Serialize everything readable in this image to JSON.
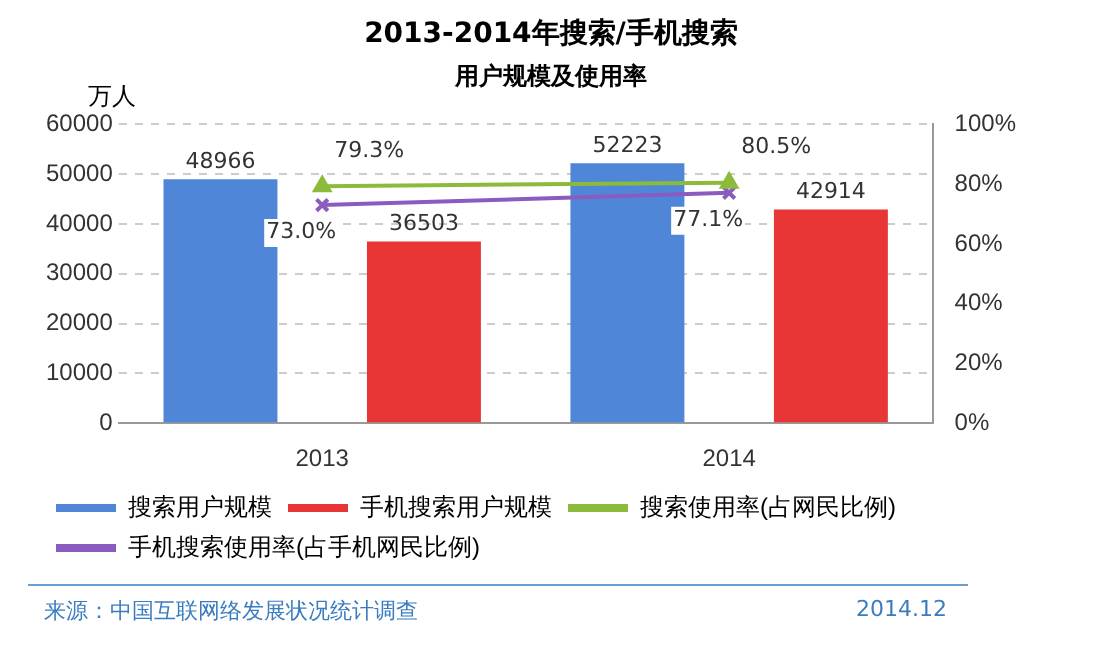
{
  "chart_data": {
    "type": "bar",
    "title": "2013-2014年搜索/手机搜索",
    "subtitle": "用户规模及使用率",
    "ylabel": "万人",
    "categories": [
      "2013",
      "2014"
    ],
    "series": [
      {
        "name": "搜索用户规模",
        "color": "#4f86d8",
        "values": [
          48966,
          52223
        ],
        "value_labels": [
          "48966",
          "52223"
        ]
      },
      {
        "name": "手机搜索用户规模",
        "color": "#e83535",
        "values": [
          36503,
          42914
        ],
        "value_labels": [
          "36503",
          "42914"
        ]
      },
      {
        "name": "搜索使用率(占网民比例)",
        "type": "line",
        "axis": "y2",
        "color": "#8cbb3c",
        "marker": "triangle",
        "values": [
          79.3,
          80.5
        ],
        "value_labels": [
          "79.3%",
          "80.5%"
        ]
      },
      {
        "name": "手机搜索使用率(占手机网民比例)",
        "type": "line",
        "axis": "y2",
        "color": "#8a5cc0",
        "marker": "cross",
        "values": [
          73.0,
          77.1
        ],
        "value_labels": [
          "73.0%",
          "77.1%"
        ]
      }
    ],
    "ylim": [
      0,
      60000
    ],
    "yticks": [
      0,
      10000,
      20000,
      30000,
      40000,
      50000,
      60000
    ],
    "y2lim": [
      0,
      100
    ],
    "y2ticks": [
      {
        "value": 0,
        "label": "0%"
      },
      {
        "value": 20,
        "label": "20%"
      },
      {
        "value": 40,
        "label": "40%"
      },
      {
        "value": 60,
        "label": "60%"
      },
      {
        "value": 80,
        "label": "80%"
      },
      {
        "value": 100,
        "label": "100%"
      }
    ],
    "grid": "y",
    "legend": "bottom",
    "annotations": [
      "来源：中国互联网络发展状况统计调查",
      "2014.12"
    ]
  }
}
